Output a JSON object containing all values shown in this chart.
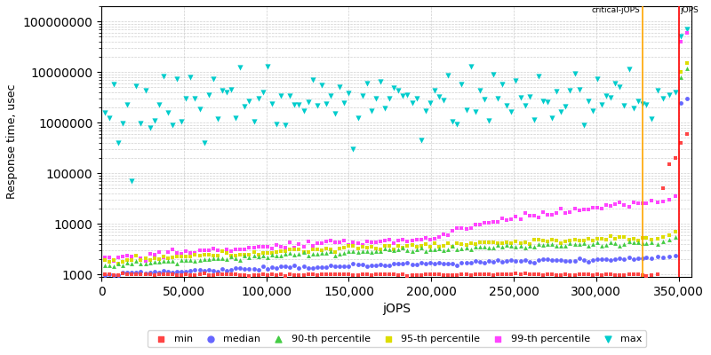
{
  "xlabel": "jOPS",
  "ylabel": "Response time, usec",
  "xlim": [
    0,
    358000
  ],
  "ylim_log": [
    900,
    200000000
  ],
  "critical_jops": 328000,
  "max_jops": 350000,
  "critical_label": "critical-jOPS",
  "max_label": "jOPS",
  "critical_color": "#FFA500",
  "max_color": "#FF0000",
  "background_color": "#ffffff",
  "plot_bg_color": "#ffffff",
  "grid_color": "#bbbbbb",
  "series": {
    "min": {
      "color": "#FF4444",
      "marker": "s",
      "ms": 2.5,
      "label": "min"
    },
    "median": {
      "color": "#6666FF",
      "marker": "o",
      "ms": 3.5,
      "label": "median"
    },
    "p90": {
      "color": "#44CC44",
      "marker": "^",
      "ms": 3.5,
      "label": "90-th percentile"
    },
    "p95": {
      "color": "#DDDD00",
      "marker": "s",
      "ms": 2.5,
      "label": "95-th percentile"
    },
    "p99": {
      "color": "#FF44FF",
      "marker": "s",
      "ms": 2.5,
      "label": "99-th percentile"
    },
    "max": {
      "color": "#00CCCC",
      "marker": "v",
      "ms": 4.5,
      "label": "max"
    }
  }
}
